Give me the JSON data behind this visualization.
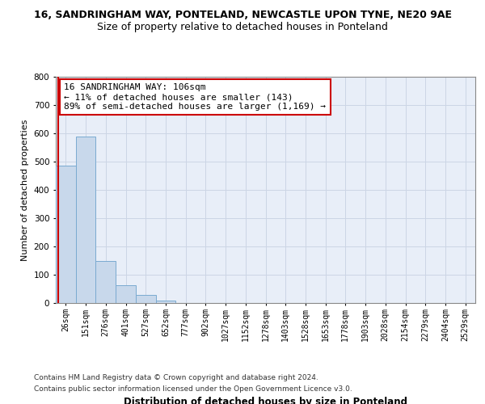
{
  "title_line1": "16, SANDRINGHAM WAY, PONTELAND, NEWCASTLE UPON TYNE, NE20 9AE",
  "title_line2": "Size of property relative to detached houses in Ponteland",
  "xlabel": "Distribution of detached houses by size in Ponteland",
  "ylabel": "Number of detached properties",
  "bar_color": "#c8d8eb",
  "bar_edge_color": "#7aaad0",
  "categories": [
    "26sqm",
    "151sqm",
    "276sqm",
    "401sqm",
    "527sqm",
    "652sqm",
    "777sqm",
    "902sqm",
    "1027sqm",
    "1152sqm",
    "1278sqm",
    "1403sqm",
    "1528sqm",
    "1653sqm",
    "1778sqm",
    "1903sqm",
    "2028sqm",
    "2154sqm",
    "2279sqm",
    "2404sqm",
    "2529sqm"
  ],
  "values": [
    487,
    588,
    150,
    62,
    28,
    8,
    0,
    0,
    0,
    0,
    0,
    0,
    0,
    0,
    0,
    0,
    0,
    0,
    0,
    0,
    0
  ],
  "ylim": [
    0,
    800
  ],
  "yticks": [
    0,
    100,
    200,
    300,
    400,
    500,
    600,
    700,
    800
  ],
  "annotation_line1": "16 SANDRINGHAM WAY: 106sqm",
  "annotation_line2": "← 11% of detached houses are smaller (143)",
  "annotation_line3": "89% of semi-detached houses are larger (1,169) →",
  "footer1": "Contains HM Land Registry data © Crown copyright and database right 2024.",
  "footer2": "Contains public sector information licensed under the Open Government Licence v3.0.",
  "grid_color": "#ccd5e5",
  "background_color": "#e8eef8",
  "red_line_color": "#cc0000",
  "title1_fontsize": 9,
  "title2_fontsize": 9,
  "xlabel_fontsize": 8.5,
  "ylabel_fontsize": 8,
  "tick_fontsize": 7,
  "annot_fontsize": 8,
  "footer_fontsize": 6.5
}
